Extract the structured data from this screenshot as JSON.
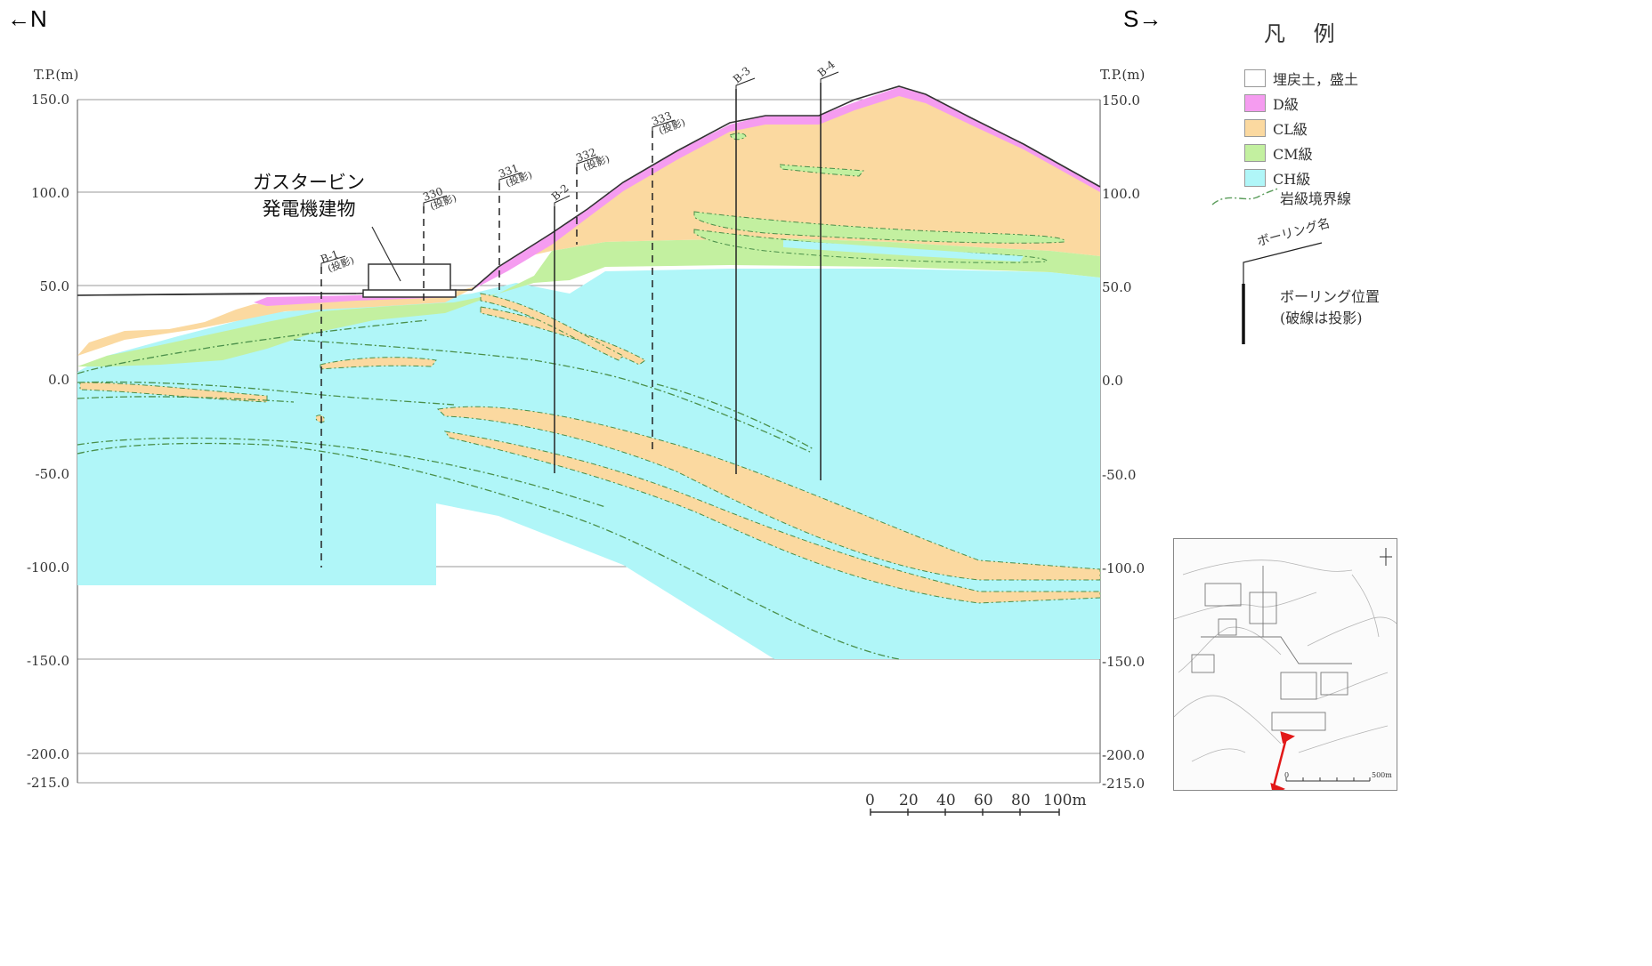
{
  "direction": {
    "north": "←N",
    "south": "S→"
  },
  "axis": {
    "title_left": "T.P.(m)",
    "title_right": "T.P.(m)",
    "ticks_left": [
      "150.0",
      "100.0",
      "50.0",
      "0.0",
      "-50.0",
      "-100.0",
      "-150.0",
      "-200.0",
      "-215.0"
    ],
    "ticks_right": [
      "150.0",
      "100.0",
      "50.0",
      "0.0",
      "-50.0",
      "-100.0",
      "-150.0",
      "-200.0",
      "-215.0"
    ]
  },
  "building": {
    "line1": "ガスタービン",
    "line2": "発電機建物"
  },
  "boreholes": [
    {
      "name": "B-1",
      "note": "(投影)"
    },
    {
      "name": "330",
      "note": "(投影)"
    },
    {
      "name": "331",
      "note": "(投影)"
    },
    {
      "name": "332",
      "note": "(投影)"
    },
    {
      "name": "333",
      "note": "(投影)"
    },
    {
      "name": "B-2",
      "note": ""
    },
    {
      "name": "B-3",
      "note": ""
    },
    {
      "name": "B-4",
      "note": ""
    }
  ],
  "legend": {
    "title": "凡 例",
    "items": [
      {
        "label": "埋戻土，盛土",
        "color": "#ffffff"
      },
      {
        "label": "D級",
        "color": "#f59cf0"
      },
      {
        "label": "CL級",
        "color": "#fbd9a0"
      },
      {
        "label": "CM級",
        "color": "#c3f0a0"
      },
      {
        "label": "CH級",
        "color": "#b0f6f8"
      }
    ],
    "boundary_label": "岩級境界線",
    "boring_name_label": "ボーリング名",
    "boring_pos_line1": "ボーリング位置",
    "boring_pos_line2": "(破線は投影)"
  },
  "scale": {
    "labels": [
      "0",
      "20",
      "40",
      "60",
      "80",
      "100m"
    ]
  },
  "minimap": {
    "scale_zero": "0",
    "scale_end": "500m"
  }
}
